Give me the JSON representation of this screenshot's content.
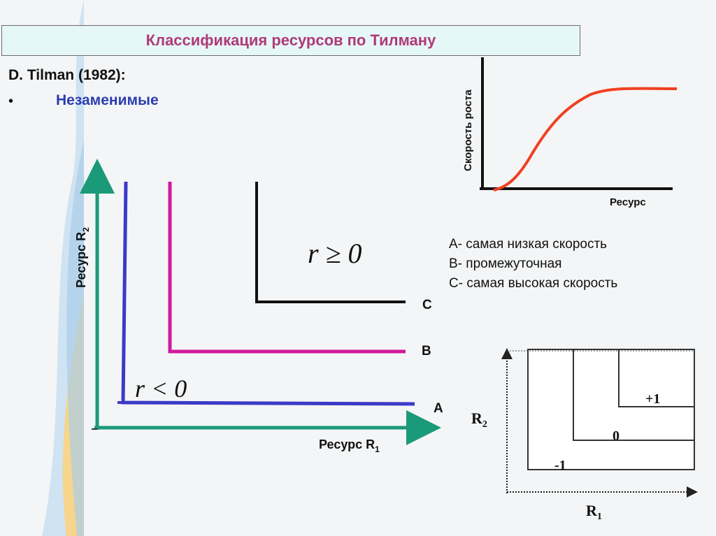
{
  "title": "Классификация ресурсов по Тилману",
  "author": "D. Tilman (1982):",
  "bullet": "•",
  "subtitle": "Незаменимые",
  "main_diagram": {
    "y_axis_label": "Ресурс R",
    "y_axis_sub": "2",
    "x_axis_label": "Ресурс R",
    "x_axis_sub": "1",
    "r_less_label": "r < 0",
    "r_geq_label": "r ≥ 0",
    "curves": [
      {
        "id": "A",
        "label": "A",
        "color": "#3a3ac8"
      },
      {
        "id": "B",
        "label": "B",
        "color": "#d0199c"
      },
      {
        "id": "C",
        "label": "C",
        "color": "#111111"
      }
    ]
  },
  "growth_chart": {
    "y_axis_label": "Скорость роста",
    "x_axis_label": "Ресурс",
    "curve_color": "#f04020"
  },
  "legend": [
    "А- самая низкая скорость",
    "В- промежуточная",
    "С- самая высокая скорость"
  ],
  "zone_diagram": {
    "y_axis_label": "R",
    "y_axis_sub": "2",
    "x_axis_label": "R",
    "x_axis_sub": "1",
    "zones": [
      "+1",
      "0",
      "-1"
    ]
  }
}
